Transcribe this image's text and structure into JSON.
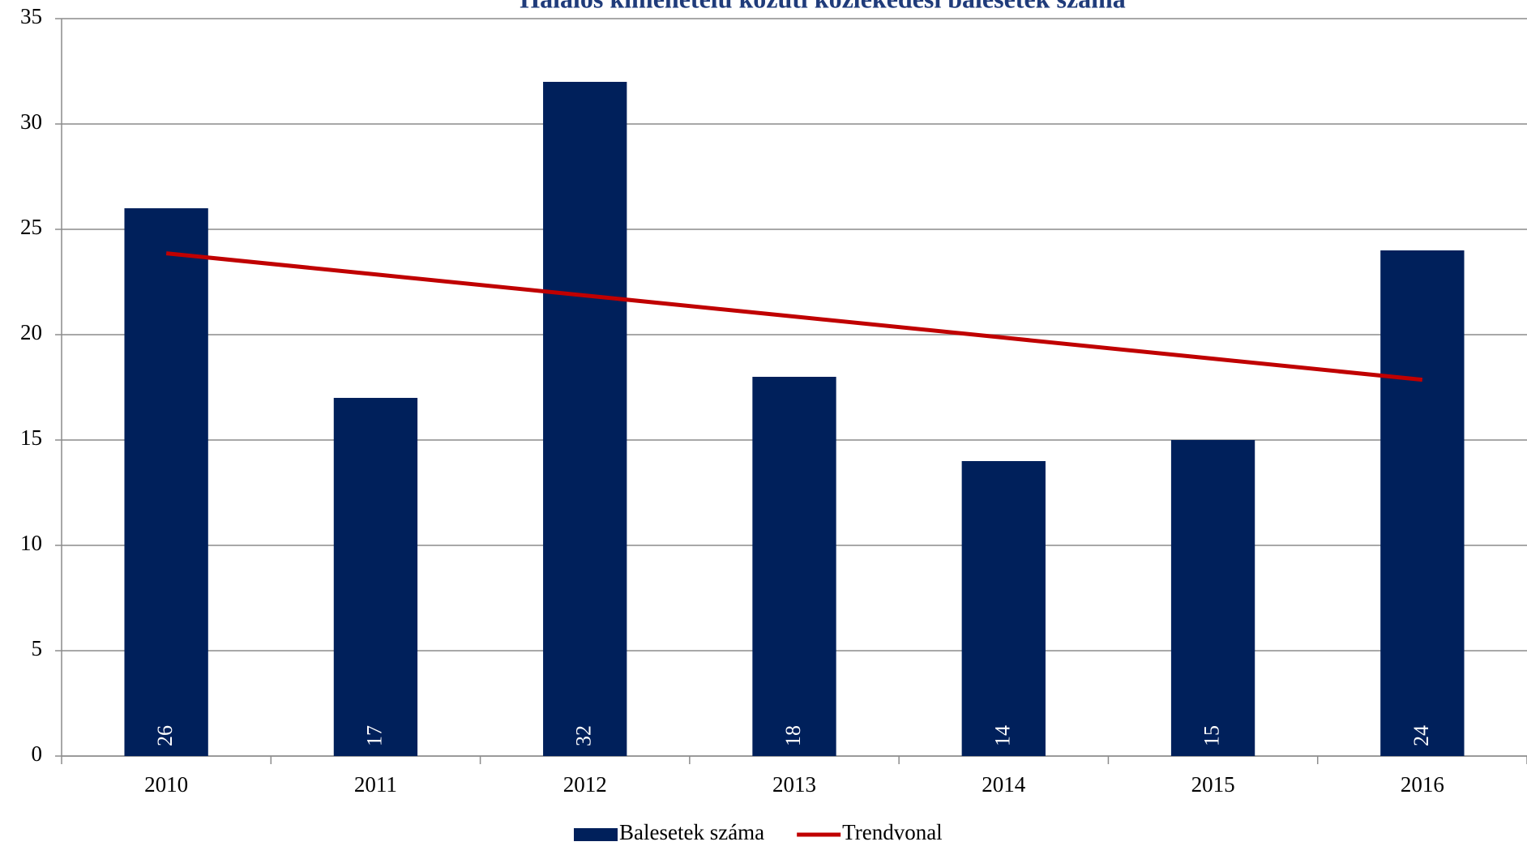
{
  "chart_data": {
    "type": "bar",
    "title": "Halálos kimenetelű közúti közlekedési balesetek száma",
    "categories": [
      "2010",
      "2011",
      "2012",
      "2013",
      "2014",
      "2015",
      "2016"
    ],
    "series": [
      {
        "name": "Balesetek száma",
        "type": "bar",
        "color": "#00205b",
        "values": [
          26,
          17,
          32,
          18,
          14,
          15,
          24
        ]
      },
      {
        "name": "Trendvonal",
        "type": "line",
        "color": "#c00000",
        "values": [
          23.86,
          22.86,
          21.86,
          20.86,
          19.86,
          18.86,
          17.86
        ]
      }
    ],
    "ylim": [
      0,
      35
    ],
    "yticks": [
      0,
      5,
      10,
      15,
      20,
      25,
      30,
      35
    ],
    "grid": true,
    "legend": "bottom"
  }
}
